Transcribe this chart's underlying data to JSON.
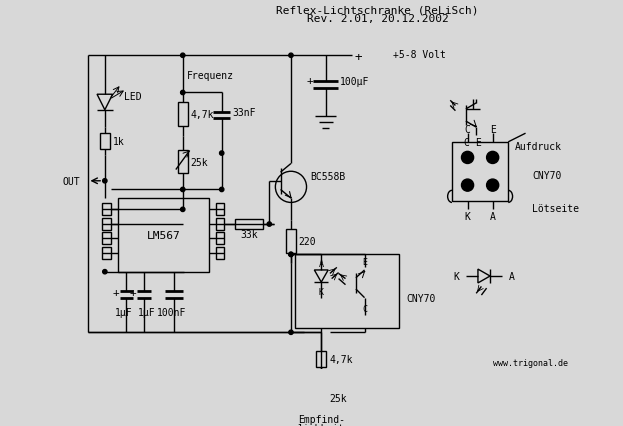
{
  "title_line1": "Reflex-Lichtschranke (ReLiSch)",
  "title_line2": "Rev. 2.01, 20.12.2002",
  "watermark": "www.trigonal.de",
  "bg_color": "#d8d8d8",
  "fg_color": "#000000"
}
